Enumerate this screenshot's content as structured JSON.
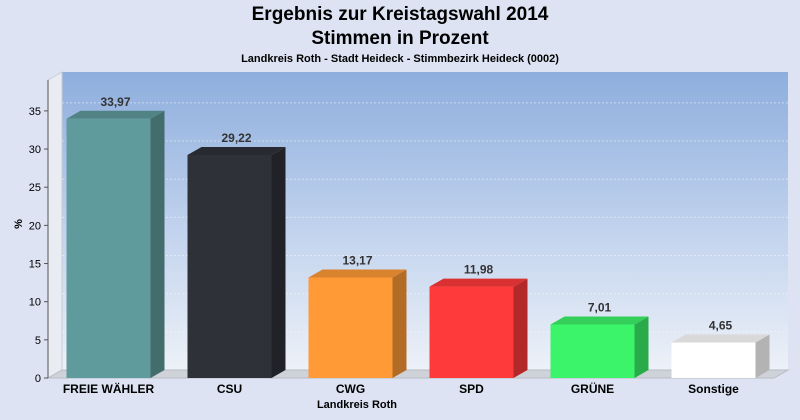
{
  "chart_data": {
    "type": "bar",
    "title": [
      "Ergebnis zur Kreistagswahl 2014",
      "Stimmen in Prozent"
    ],
    "subtitle": "Landkreis Roth - Stadt Heideck - Stimmbezirk Heideck (0002)",
    "xlabel": "Landkreis Roth",
    "ylabel": "%",
    "ylim": [
      0,
      38
    ],
    "yticks": [
      0,
      5,
      10,
      15,
      20,
      25,
      30,
      35
    ],
    "categories": [
      "FREIE WÄHLER",
      "CSU",
      "CWG",
      "SPD",
      "GRÜNE",
      "Sonstige"
    ],
    "values": [
      33.97,
      29.22,
      13.17,
      11.98,
      7.01,
      4.65
    ],
    "value_labels": [
      "33,97",
      "29,22",
      "13,17",
      "11,98",
      "7,01",
      "4,65"
    ],
    "colors": [
      "#5f9a9c",
      "#2e3138",
      "#ff9a36",
      "#ff3a3a",
      "#3cf46a",
      "#ffffff"
    ],
    "grid": true,
    "legend": "none"
  }
}
